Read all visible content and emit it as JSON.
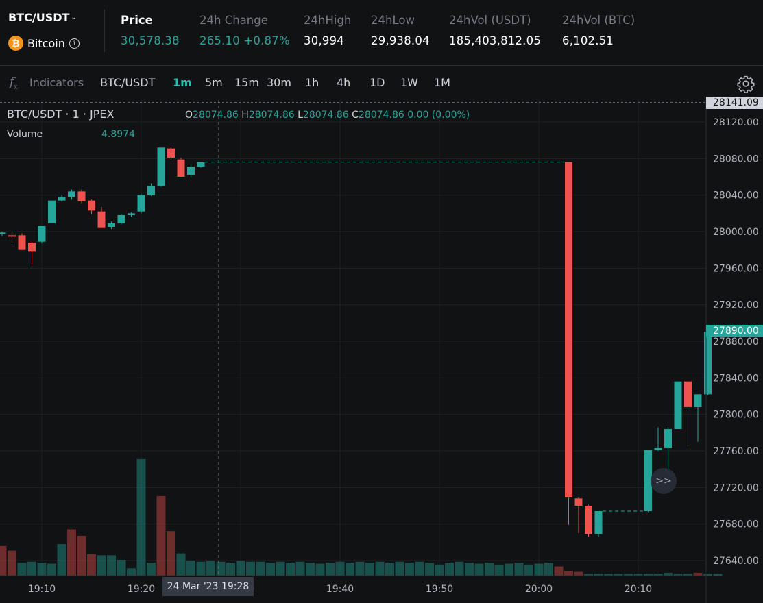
{
  "header": {
    "pair": "BTC/USDT",
    "coin_name": "Bitcoin",
    "stats": [
      {
        "label": "Price",
        "value": "30,578.38"
      },
      {
        "label": "24h Change",
        "value": "265.10 +0.87%"
      },
      {
        "label": "24hHigh",
        "value": "30,994"
      },
      {
        "label": "24hLow",
        "value": "29,938.04"
      },
      {
        "label": "24hVol (USDT)",
        "value": "185,403,812.05"
      },
      {
        "label": "24hVol (BTC)",
        "value": "6,102.51"
      }
    ]
  },
  "toolbar": {
    "indicators_label": "Indicators",
    "symbol_label": "BTC/USDT",
    "intervals": [
      "1m",
      "5m",
      "15m",
      "30m",
      "1h",
      "4h",
      "1D",
      "1W",
      "1M"
    ],
    "active_interval": "1m",
    "settings_icon": "gear-icon",
    "indicators_icon": "fx-icon"
  },
  "legend": {
    "symbol_line": "BTC/USDT · 1 · JPEX",
    "o_label": "O",
    "o_value": "28074.86",
    "h_label": "H",
    "h_value": "28074.86",
    "l_label": "L",
    "l_value": "28074.86",
    "c_label": "C",
    "c_value": "28074.86",
    "change": "0.00 (0.00%)",
    "volume_label": "Volume",
    "volume_value": "4.8974"
  },
  "crosshair": {
    "time_label": "24 Mar '23   19:28"
  },
  "price_tags": {
    "high": "28141.09",
    "last": "27890.00"
  },
  "scroll_button": ">>",
  "colors": {
    "up": "#26a69a",
    "down": "#ef5350",
    "background": "#111214",
    "grid": "#1e2026"
  },
  "chart_data": {
    "type": "candlestick",
    "x_ticks": [
      "19:10",
      "19:20",
      "19:30",
      "19:40",
      "19:50",
      "20:00",
      "20:10"
    ],
    "y_ticks": [
      28120,
      28080,
      28040,
      28000,
      27960,
      27920,
      27880,
      27840,
      27800,
      27760,
      27720,
      27680,
      27640
    ],
    "ylim": [
      27626,
      28145
    ],
    "candles": [
      {
        "t": "19:06",
        "o": 27998,
        "h": 28000,
        "l": 27995,
        "c": 27999
      },
      {
        "t": "19:07",
        "o": 27996,
        "h": 27999,
        "l": 27988,
        "c": 27995
      },
      {
        "t": "19:08",
        "o": 27996,
        "h": 27998,
        "l": 27980,
        "c": 27980
      },
      {
        "t": "19:09",
        "o": 27988,
        "h": 27989,
        "l": 27964,
        "c": 27978
      },
      {
        "t": "19:10",
        "o": 27989,
        "h": 28006,
        "l": 27987,
        "c": 28006
      },
      {
        "t": "19:11",
        "o": 28009,
        "h": 28034,
        "l": 28009,
        "c": 28034
      },
      {
        "t": "19:12",
        "o": 28034,
        "h": 28040,
        "l": 28033,
        "c": 28038
      },
      {
        "t": "19:13",
        "o": 28038,
        "h": 28046,
        "l": 28035,
        "c": 28044
      },
      {
        "t": "19:14",
        "o": 28044,
        "h": 28046,
        "l": 28031,
        "c": 28033
      },
      {
        "t": "19:15",
        "o": 28034,
        "h": 28035,
        "l": 28019,
        "c": 28023
      },
      {
        "t": "19:16",
        "o": 28022,
        "h": 28027,
        "l": 28004,
        "c": 28004
      },
      {
        "t": "19:17",
        "o": 28005,
        "h": 28011,
        "l": 28003,
        "c": 28009
      },
      {
        "t": "19:18",
        "o": 28009,
        "h": 28019,
        "l": 28008,
        "c": 28018
      },
      {
        "t": "19:19",
        "o": 28018,
        "h": 28021,
        "l": 28016,
        "c": 28020
      },
      {
        "t": "19:20",
        "o": 28022,
        "h": 28041,
        "l": 28020,
        "c": 28040
      },
      {
        "t": "19:21",
        "o": 28040,
        "h": 28053,
        "l": 28039,
        "c": 28050
      },
      {
        "t": "19:22",
        "o": 28050,
        "h": 28092,
        "l": 28049,
        "c": 28092
      },
      {
        "t": "19:23",
        "o": 28091,
        "h": 28092,
        "l": 28079,
        "c": 28081
      },
      {
        "t": "19:24",
        "o": 28079,
        "h": 28081,
        "l": 28060,
        "c": 28060
      },
      {
        "t": "19:25",
        "o": 28062,
        "h": 28073,
        "l": 28059,
        "c": 28071
      },
      {
        "t": "19:26",
        "o": 28071,
        "h": 28076,
        "l": 28070,
        "c": 28076
      },
      {
        "t": "20:03",
        "o": 28076,
        "h": 28076,
        "l": 27679,
        "c": 27709
      },
      {
        "t": "20:04",
        "o": 27708,
        "h": 27709,
        "l": 27670,
        "c": 27700
      },
      {
        "t": "20:05",
        "o": 27700,
        "h": 27701,
        "l": 27666,
        "c": 27669
      },
      {
        "t": "20:06",
        "o": 27669,
        "h": 27694,
        "l": 27666,
        "c": 27694
      },
      {
        "t": "20:11",
        "o": 27694,
        "h": 27761,
        "l": 27693,
        "c": 27761
      },
      {
        "t": "20:12",
        "o": 27761,
        "h": 27786,
        "l": 27760,
        "c": 27763
      },
      {
        "t": "20:13",
        "o": 27763,
        "h": 27786,
        "l": 27735,
        "c": 27784
      },
      {
        "t": "20:14",
        "o": 27784,
        "h": 27836,
        "l": 27784,
        "c": 27836
      },
      {
        "t": "20:15",
        "o": 27836,
        "h": 27836,
        "l": 27765,
        "c": 27808
      },
      {
        "t": "20:16",
        "o": 27808,
        "h": 27822,
        "l": 27770,
        "c": 27822
      },
      {
        "t": "20:17",
        "o": 27822,
        "h": 27890,
        "l": 27821,
        "c": 27890
      }
    ],
    "volume": {
      "bars": [
        {
          "v": 32,
          "up": false
        },
        {
          "v": 27,
          "up": false
        },
        {
          "v": 14,
          "up": true
        },
        {
          "v": 15,
          "up": true
        },
        {
          "v": 14,
          "up": true
        },
        {
          "v": 13,
          "up": true
        },
        {
          "v": 34,
          "up": true
        },
        {
          "v": 50,
          "up": false
        },
        {
          "v": 43,
          "up": false
        },
        {
          "v": 23,
          "up": false
        },
        {
          "v": 22,
          "up": true
        },
        {
          "v": 22,
          "up": true
        },
        {
          "v": 17,
          "up": true
        },
        {
          "v": 8,
          "up": true
        },
        {
          "v": 126,
          "up": true
        },
        {
          "v": 14,
          "up": true
        },
        {
          "v": 86,
          "up": false
        },
        {
          "v": 48,
          "up": false
        },
        {
          "v": 24,
          "up": true
        },
        {
          "v": 16,
          "up": true
        },
        {
          "v": 15,
          "up": true
        },
        {
          "v": 16,
          "up": true
        },
        {
          "v": 15,
          "up": true
        },
        {
          "v": 14,
          "up": true
        },
        {
          "v": 16,
          "up": true
        },
        {
          "v": 15,
          "up": true
        },
        {
          "v": 15,
          "up": true
        },
        {
          "v": 14,
          "up": true
        },
        {
          "v": 15,
          "up": true
        },
        {
          "v": 14,
          "up": true
        },
        {
          "v": 15,
          "up": true
        },
        {
          "v": 14,
          "up": true
        },
        {
          "v": 13,
          "up": true
        },
        {
          "v": 14,
          "up": true
        },
        {
          "v": 15,
          "up": true
        },
        {
          "v": 14,
          "up": true
        },
        {
          "v": 15,
          "up": true
        },
        {
          "v": 14,
          "up": true
        },
        {
          "v": 15,
          "up": true
        },
        {
          "v": 14,
          "up": true
        },
        {
          "v": 15,
          "up": true
        },
        {
          "v": 14,
          "up": true
        },
        {
          "v": 15,
          "up": true
        },
        {
          "v": 14,
          "up": true
        },
        {
          "v": 12,
          "up": true
        },
        {
          "v": 14,
          "up": true
        },
        {
          "v": 15,
          "up": true
        },
        {
          "v": 14,
          "up": true
        },
        {
          "v": 13,
          "up": true
        },
        {
          "v": 14,
          "up": true
        },
        {
          "v": 12,
          "up": true
        },
        {
          "v": 13,
          "up": true
        },
        {
          "v": 14,
          "up": true
        },
        {
          "v": 12,
          "up": true
        },
        {
          "v": 13,
          "up": true
        },
        {
          "v": 14,
          "up": true
        },
        {
          "v": 10,
          "up": false
        },
        {
          "v": 5,
          "up": false
        },
        {
          "v": 4,
          "up": false
        },
        {
          "v": 2,
          "up": true
        },
        {
          "v": 2,
          "up": true
        },
        {
          "v": 2,
          "up": true
        },
        {
          "v": 2,
          "up": true
        },
        {
          "v": 2,
          "up": true
        },
        {
          "v": 2,
          "up": true
        },
        {
          "v": 2,
          "up": true
        },
        {
          "v": 2,
          "up": true
        },
        {
          "v": 3,
          "up": true
        },
        {
          "v": 2,
          "up": true
        },
        {
          "v": 2,
          "up": true
        },
        {
          "v": 3,
          "up": false
        },
        {
          "v": 2,
          "up": true
        },
        {
          "v": 2,
          "up": true
        }
      ]
    }
  }
}
